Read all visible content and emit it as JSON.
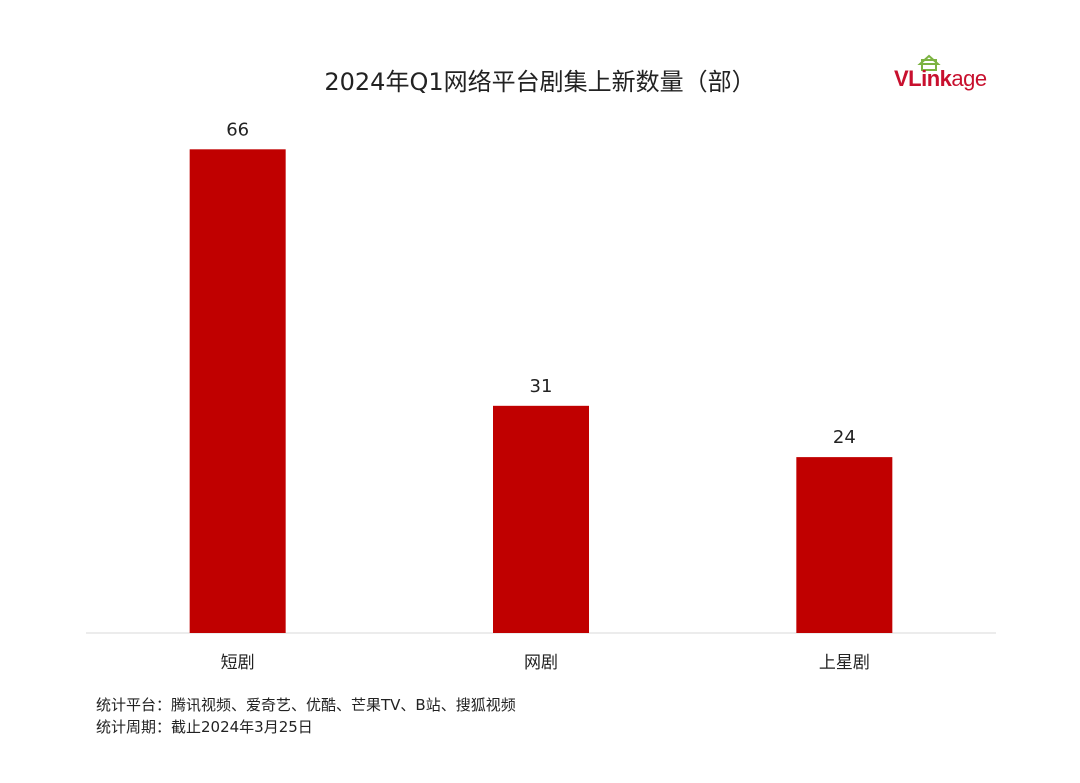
{
  "chart_data": {
    "type": "bar",
    "title": "2024年Q1网络平台剧集上新数量（部）",
    "categories": [
      "短剧",
      "网剧",
      "上星剧"
    ],
    "values": [
      66,
      31,
      24
    ],
    "xlabel": "",
    "ylabel": "",
    "ylim": [
      0,
      70
    ],
    "grid": false,
    "bar_color": "#c00000"
  },
  "brand": {
    "logo_text_bold": "VLink",
    "logo_text_light": "age",
    "accent": "#c8102e",
    "mark_color": "#7cb342"
  },
  "notes": {
    "platforms": "统计平台：腾讯视频、爱奇艺、优酷、芒果TV、B站、搜狐视频",
    "period": "统计周期：截止2024年3月25日"
  }
}
